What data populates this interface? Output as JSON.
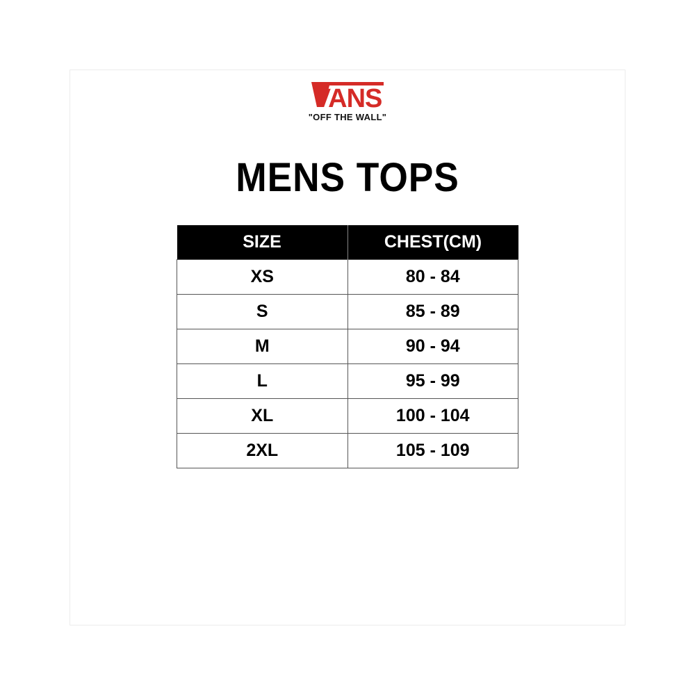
{
  "brand": {
    "name": "VANS",
    "tagline": "\"OFF THE WALL\"",
    "color": "#d52b27"
  },
  "title": "MENS TOPS",
  "table": {
    "headers": [
      "SIZE",
      "CHEST(CM)"
    ],
    "rows": [
      [
        "XS",
        "80 - 84"
      ],
      [
        "S",
        "85 - 89"
      ],
      [
        "M",
        "90 - 94"
      ],
      [
        "L",
        "95 - 99"
      ],
      [
        "XL",
        "100 - 104"
      ],
      [
        "2XL",
        "105 - 109"
      ]
    ]
  }
}
